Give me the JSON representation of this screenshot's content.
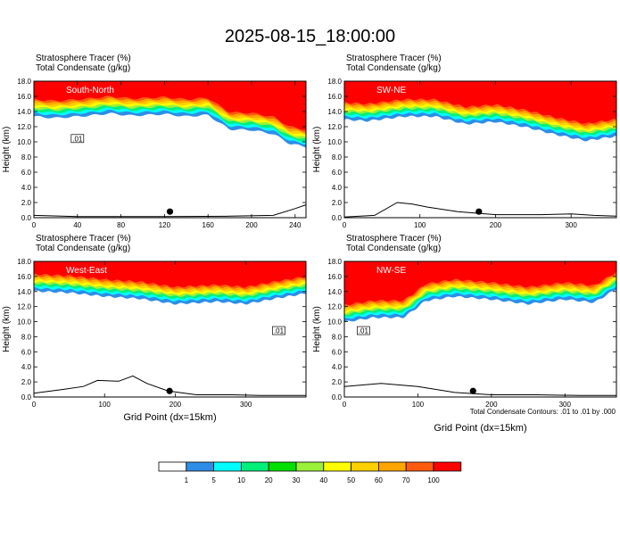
{
  "title": "2025-08-15_18:00:00",
  "colors": [
    "#ffffff",
    "#2e8de6",
    "#00ffff",
    "#00f07a",
    "#00e000",
    "#9bf03a",
    "#ffff00",
    "#ffd000",
    "#ffa500",
    "#ff5a0f",
    "#ff0000"
  ],
  "colorbar": {
    "labels": [
      "1",
      "5",
      "10",
      "20",
      "30",
      "40",
      "50",
      "60",
      "70",
      "100"
    ]
  },
  "footnote": "Total Condensate Contours: .01 to .01 by .000",
  "chart_data": [
    {
      "type": "heatmap",
      "name": "South-North",
      "title_line1": "Stratosphere Tracer   (%)",
      "title_line2": "Total Condensate   (g/kg)",
      "ylabel": "Height (km)",
      "xlabel": "",
      "ylim": [
        0,
        18
      ],
      "yticks": [
        "0.0",
        "2.0",
        "4.0",
        "6.0",
        "8.0",
        "10.0",
        "12.0",
        "14.0",
        "16.0",
        "18.0"
      ],
      "xlim": [
        0,
        250
      ],
      "xticks": [
        0,
        40,
        80,
        120,
        160,
        200,
        240
      ],
      "contour_label": ".01",
      "tracer_base_km": [
        [
          0,
          13.6
        ],
        [
          20,
          13.4
        ],
        [
          50,
          13.7
        ],
        [
          70,
          14.0
        ],
        [
          90,
          13.7
        ],
        [
          120,
          13.9
        ],
        [
          140,
          13.6
        ],
        [
          160,
          13.8
        ],
        [
          170,
          12.8
        ],
        [
          180,
          11.9
        ],
        [
          200,
          11.8
        ],
        [
          220,
          11.3
        ],
        [
          235,
          10.0
        ],
        [
          250,
          9.6
        ]
      ],
      "terrain_km": [
        [
          0,
          0.3
        ],
        [
          40,
          0.15
        ],
        [
          120,
          0.15
        ],
        [
          180,
          0.2
        ],
        [
          220,
          0.3
        ],
        [
          240,
          1.2
        ],
        [
          250,
          1.7
        ]
      ],
      "marker_x": 125,
      "marker_y": 0.8
    },
    {
      "type": "heatmap",
      "name": "SW-NE",
      "title_line1": "Stratosphere Tracer   (%)",
      "title_line2": "Total Condensate   (g/kg)",
      "ylabel": "Height (km)",
      "xlabel": "",
      "ylim": [
        0,
        18
      ],
      "yticks": [
        "0.0",
        "2.0",
        "4.0",
        "6.0",
        "8.0",
        "10.0",
        "12.0",
        "14.0",
        "16.0",
        "18.0"
      ],
      "xlim": [
        0,
        360
      ],
      "xticks": [
        0,
        100,
        200,
        300
      ],
      "contour_label": "",
      "tracer_base_km": [
        [
          0,
          13.2
        ],
        [
          30,
          13.0
        ],
        [
          80,
          13.6
        ],
        [
          120,
          13.6
        ],
        [
          160,
          12.6
        ],
        [
          200,
          12.9
        ],
        [
          240,
          12.2
        ],
        [
          280,
          11.2
        ],
        [
          320,
          10.4
        ],
        [
          360,
          11.0
        ]
      ],
      "terrain_km": [
        [
          0,
          0.1
        ],
        [
          40,
          0.3
        ],
        [
          70,
          2.0
        ],
        [
          90,
          1.8
        ],
        [
          110,
          1.4
        ],
        [
          150,
          0.8
        ],
        [
          200,
          0.4
        ],
        [
          260,
          0.4
        ],
        [
          300,
          0.5
        ],
        [
          330,
          0.3
        ],
        [
          360,
          0.2
        ]
      ],
      "marker_x": 178,
      "marker_y": 0.8
    },
    {
      "type": "heatmap",
      "name": "West-East",
      "title_line1": "Stratosphere Tracer   (%)",
      "title_line2": "Total Condensate   (g/kg)",
      "ylabel": "Height (km)",
      "xlabel": "Grid Point (dx=15km)",
      "ylim": [
        0,
        18
      ],
      "yticks": [
        "0.0",
        "2.0",
        "4.0",
        "6.0",
        "8.0",
        "10.0",
        "12.0",
        "14.0",
        "16.0",
        "18.0"
      ],
      "xlim": [
        0,
        385
      ],
      "xticks": [
        0,
        100,
        200,
        300
      ],
      "contour_label": ".01",
      "tracer_base_km": [
        [
          0,
          14.3
        ],
        [
          50,
          14.1
        ],
        [
          100,
          13.6
        ],
        [
          150,
          13.3
        ],
        [
          200,
          12.6
        ],
        [
          260,
          12.9
        ],
        [
          300,
          12.6
        ],
        [
          340,
          13.3
        ],
        [
          385,
          14.0
        ]
      ],
      "terrain_km": [
        [
          0,
          0.5
        ],
        [
          40,
          1.0
        ],
        [
          70,
          1.4
        ],
        [
          90,
          2.2
        ],
        [
          120,
          2.1
        ],
        [
          140,
          2.8
        ],
        [
          160,
          1.8
        ],
        [
          190,
          0.8
        ],
        [
          230,
          0.3
        ],
        [
          280,
          0.3
        ],
        [
          320,
          0.2
        ],
        [
          385,
          0.2
        ]
      ],
      "marker_x": 192,
      "marker_y": 0.8
    },
    {
      "type": "heatmap",
      "name": "NW-SE",
      "title_line1": "Stratosphere Tracer   (%)",
      "title_line2": "Total Condensate   (g/kg)",
      "ylabel": "Height (km)",
      "xlabel": "Grid Point (dx=15km)",
      "ylim": [
        0,
        18
      ],
      "yticks": [
        "0.0",
        "2.0",
        "4.0",
        "6.0",
        "8.0",
        "10.0",
        "12.0",
        "14.0",
        "16.0",
        "18.0"
      ],
      "xlim": [
        0,
        370
      ],
      "xticks": [
        0,
        100,
        200,
        300
      ],
      "contour_label": ".01",
      "tracer_base_km": [
        [
          0,
          10.2
        ],
        [
          40,
          10.8
        ],
        [
          80,
          10.8
        ],
        [
          95,
          11.8
        ],
        [
          110,
          13.0
        ],
        [
          150,
          13.6
        ],
        [
          200,
          13.2
        ],
        [
          250,
          12.6
        ],
        [
          300,
          13.2
        ],
        [
          340,
          12.8
        ],
        [
          370,
          14.6
        ]
      ],
      "terrain_km": [
        [
          0,
          1.4
        ],
        [
          50,
          1.8
        ],
        [
          100,
          1.4
        ],
        [
          150,
          0.6
        ],
        [
          200,
          0.3
        ],
        [
          260,
          0.3
        ],
        [
          320,
          0.2
        ],
        [
          370,
          0.2
        ]
      ],
      "marker_x": 175,
      "marker_y": 0.8
    }
  ]
}
